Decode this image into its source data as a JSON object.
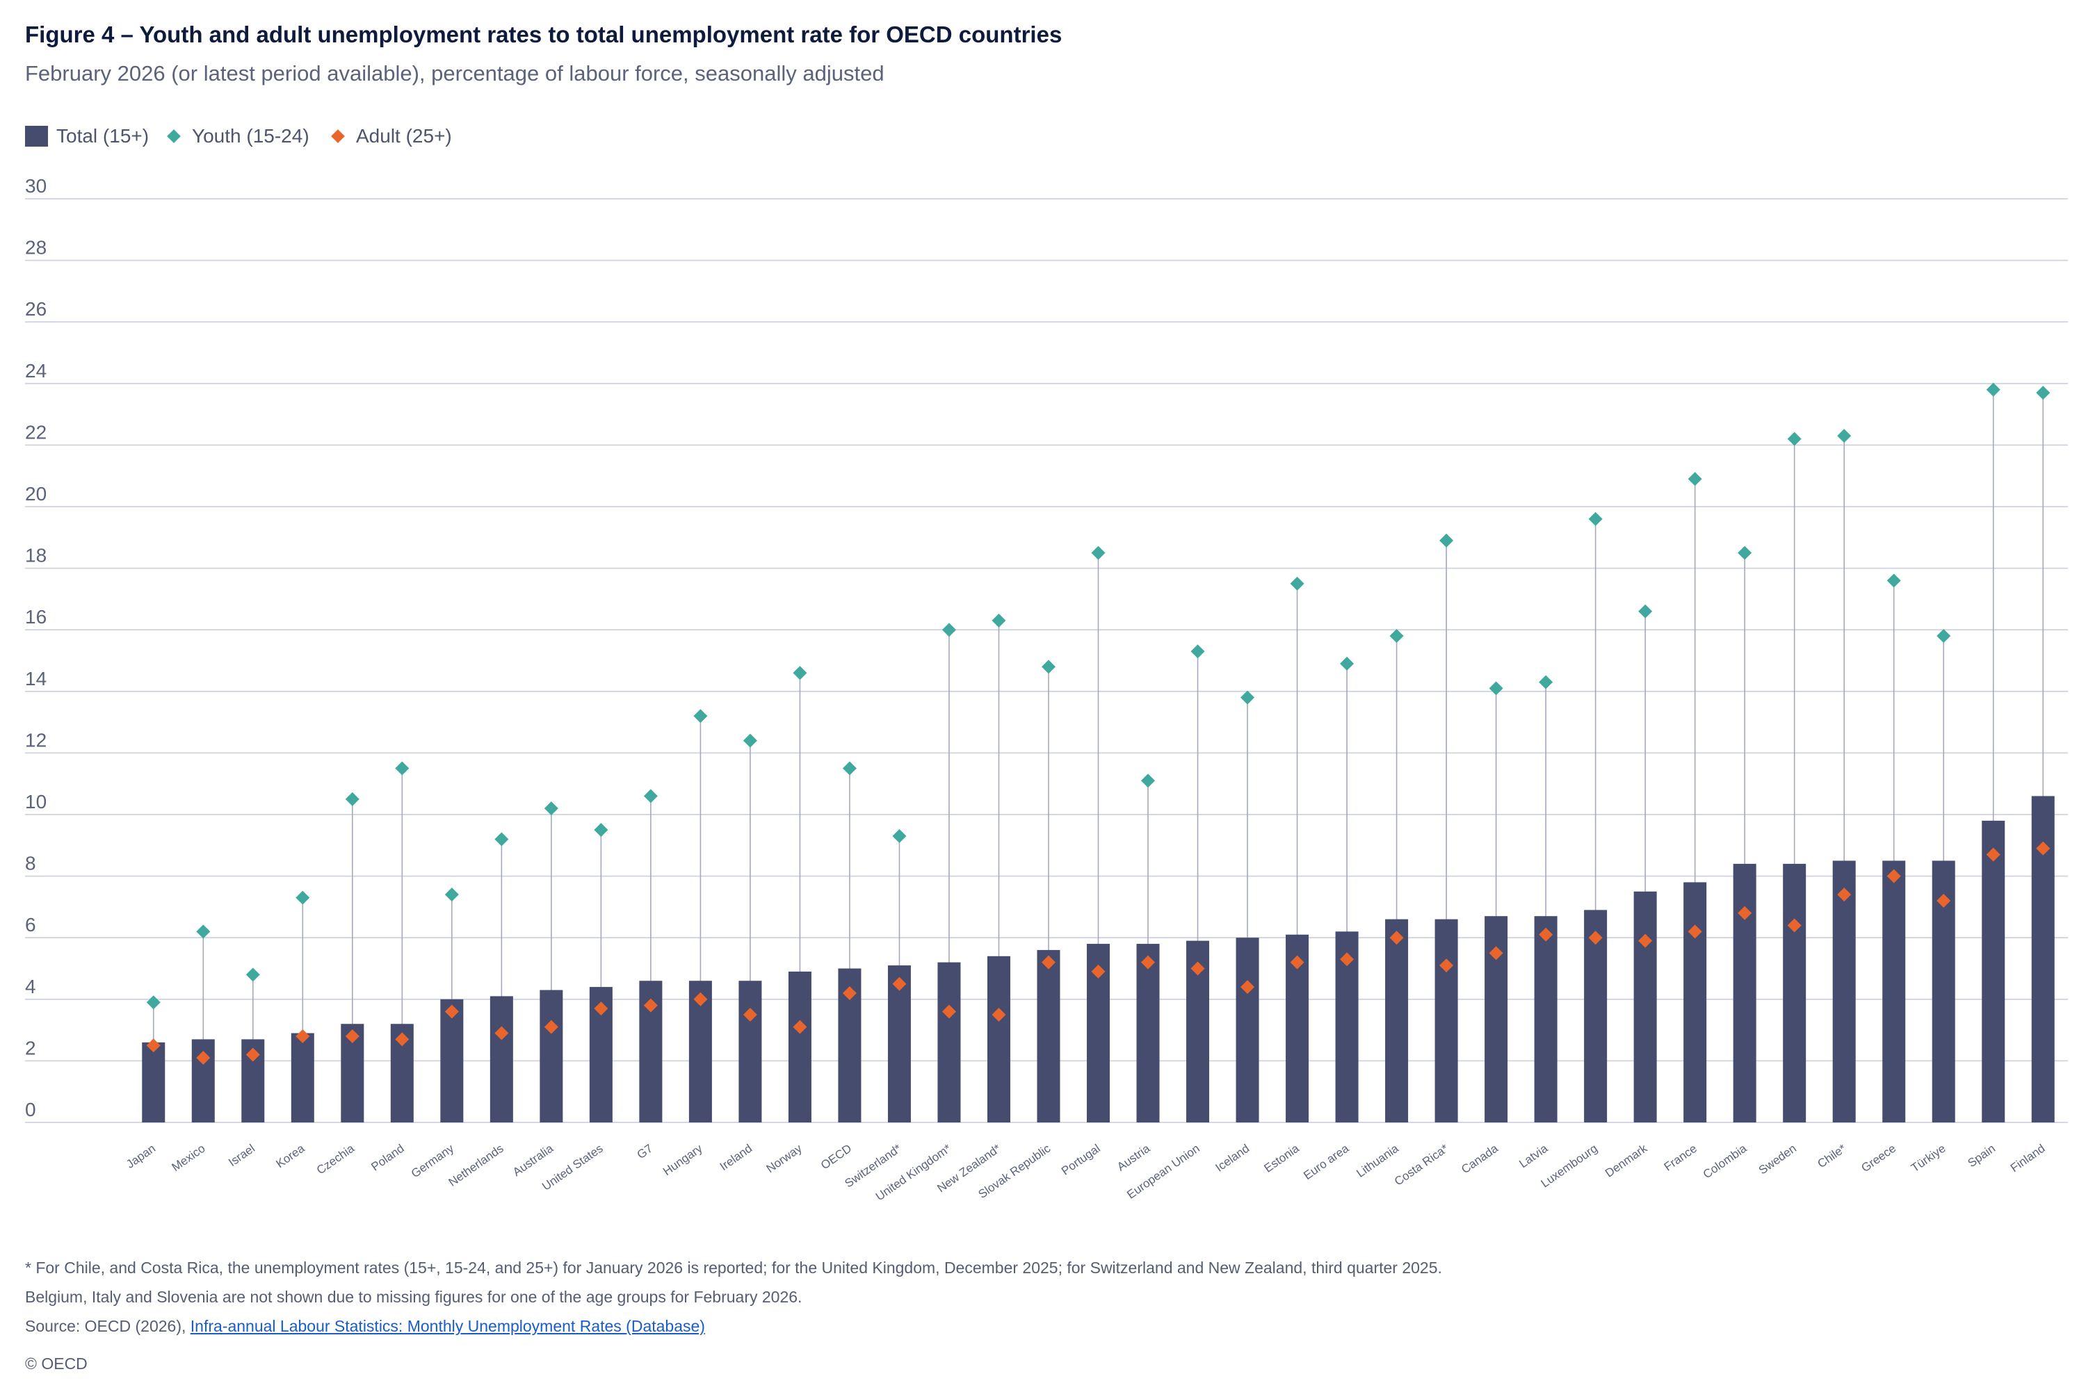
{
  "chart_data": {
    "type": "bar",
    "title": "Figure 4 – Youth and adult unemployment rates to total unemployment rate for OECD countries",
    "subtitle": "February 2026 (or latest period available), percentage of labour force, seasonally adjusted",
    "categories": [
      "Japan",
      "Mexico",
      "Israel",
      "Korea",
      "Czechia",
      "Poland",
      "Germany",
      "Netherlands",
      "Australia",
      "United States",
      "G7",
      "Hungary",
      "Ireland",
      "Norway",
      "OECD",
      "Switzerland*",
      "United Kingdom*",
      "New Zealand*",
      "Slovak Republic",
      "Portugal",
      "Austria",
      "European Union",
      "Iceland",
      "Estonia",
      "Euro area",
      "Lithuania",
      "Costa Rica*",
      "Canada",
      "Latvia",
      "Luxembourg",
      "Denmark",
      "France",
      "Colombia",
      "Sweden",
      "Chile*",
      "Greece",
      "Türkiye",
      "Spain",
      "Finland"
    ],
    "series": [
      {
        "name": "Total (15+)",
        "type": "bar",
        "color": "#454c6d",
        "values": [
          2.6,
          2.7,
          2.7,
          2.9,
          3.2,
          3.2,
          4.0,
          4.1,
          4.3,
          4.4,
          4.6,
          4.6,
          4.6,
          4.9,
          5.0,
          5.1,
          5.2,
          5.4,
          5.6,
          5.8,
          5.8,
          5.9,
          6.0,
          6.1,
          6.2,
          6.6,
          6.6,
          6.7,
          6.7,
          6.9,
          7.5,
          7.8,
          8.4,
          8.4,
          8.5,
          8.5,
          8.5,
          9.8,
          10.6
        ]
      },
      {
        "name": "Youth (15-24)",
        "type": "scatter",
        "marker": "diamond",
        "color": "#3fa99e",
        "values": [
          3.9,
          6.2,
          4.8,
          7.3,
          10.5,
          11.5,
          7.4,
          9.2,
          10.2,
          9.5,
          10.6,
          13.2,
          12.4,
          14.6,
          11.5,
          9.3,
          16.0,
          16.3,
          14.8,
          18.5,
          11.1,
          15.3,
          13.8,
          17.5,
          14.9,
          15.8,
          18.9,
          14.1,
          14.3,
          19.6,
          16.6,
          20.9,
          18.5,
          22.2,
          22.3,
          17.6,
          15.8,
          23.8,
          23.7
        ]
      },
      {
        "name": "Adult (25+)",
        "type": "scatter",
        "marker": "diamond",
        "color": "#e9652b",
        "values": [
          2.5,
          2.1,
          2.2,
          2.8,
          2.8,
          2.7,
          3.6,
          2.9,
          3.1,
          3.7,
          3.8,
          4.0,
          3.5,
          3.1,
          4.2,
          4.5,
          3.6,
          3.5,
          5.2,
          4.9,
          5.2,
          5.0,
          4.4,
          5.2,
          5.3,
          6.0,
          5.1,
          5.5,
          6.1,
          6.0,
          5.9,
          6.2,
          6.8,
          6.4,
          7.4,
          8.0,
          7.2,
          8.7,
          8.9
        ]
      }
    ],
    "ylim": [
      0,
      30
    ],
    "yticks": [
      30,
      28,
      26,
      24,
      22,
      20,
      18,
      16,
      14,
      12,
      10,
      8,
      6,
      4,
      2,
      0
    ],
    "grid": true,
    "legend": "top-left"
  },
  "colors": {
    "grid": "#cfd3de",
    "connector": "#a4a9bc"
  },
  "notes": {
    "footnote": "* For Chile, and Costa Rica, the unemployment rates (15+, 15-24, and 25+) for January 2026 is reported; for the United Kingdom, December 2025; for Switzerland and New Zealand, third quarter 2025.",
    "missing": "Belgium, Italy and Slovenia are not shown due to missing figures for one of the age groups for February 2026.",
    "source_prefix": "Source: OECD (2026), ",
    "source_link": "Infra-annual Labour Statistics: Monthly Unemployment Rates (Database)",
    "copyright": "© OECD"
  }
}
